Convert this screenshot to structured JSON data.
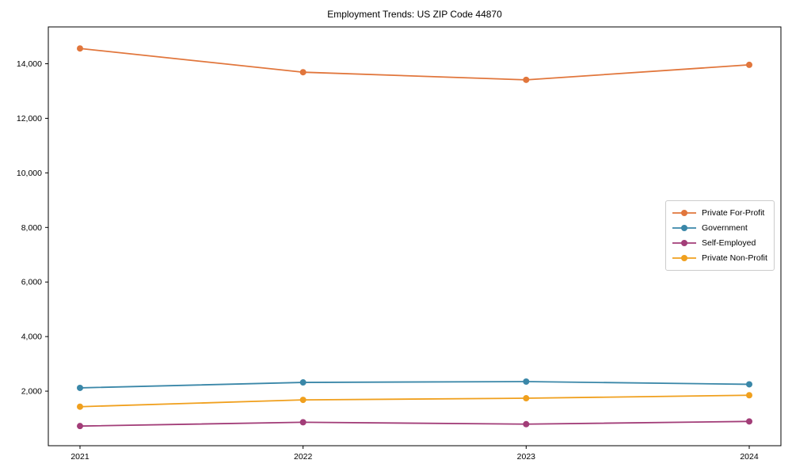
{
  "chart_data": {
    "type": "line",
    "title": "Employment Trends: US ZIP Code 44870",
    "xlabel": "",
    "ylabel": "",
    "categories": [
      "2021",
      "2022",
      "2023",
      "2024"
    ],
    "series": [
      {
        "name": "Private For-Profit",
        "slug": "private-for-profit",
        "color": "#e1763c",
        "values": [
          14560,
          13690,
          13410,
          13960
        ]
      },
      {
        "name": "Government",
        "slug": "government",
        "color": "#3a87a8",
        "values": [
          2120,
          2320,
          2350,
          2250
        ]
      },
      {
        "name": "Self-Employed",
        "slug": "self-employed",
        "color": "#a23d78",
        "values": [
          720,
          860,
          790,
          890
        ]
      },
      {
        "name": "Private Non-Profit",
        "slug": "private-non-profit",
        "color": "#f0a01e",
        "values": [
          1430,
          1680,
          1740,
          1850
        ]
      }
    ],
    "ylim": [
      0,
      15350
    ],
    "yticks": [
      2000,
      4000,
      6000,
      8000,
      10000,
      12000,
      14000
    ],
    "ytick_labels": [
      "2,000",
      "4,000",
      "6,000",
      "8,000",
      "10,000",
      "12,000",
      "14,000"
    ],
    "grid": false,
    "legend_position": "center right",
    "marker": "circle",
    "axis_color": "#000000",
    "legend_border_color": "#cccccc"
  }
}
